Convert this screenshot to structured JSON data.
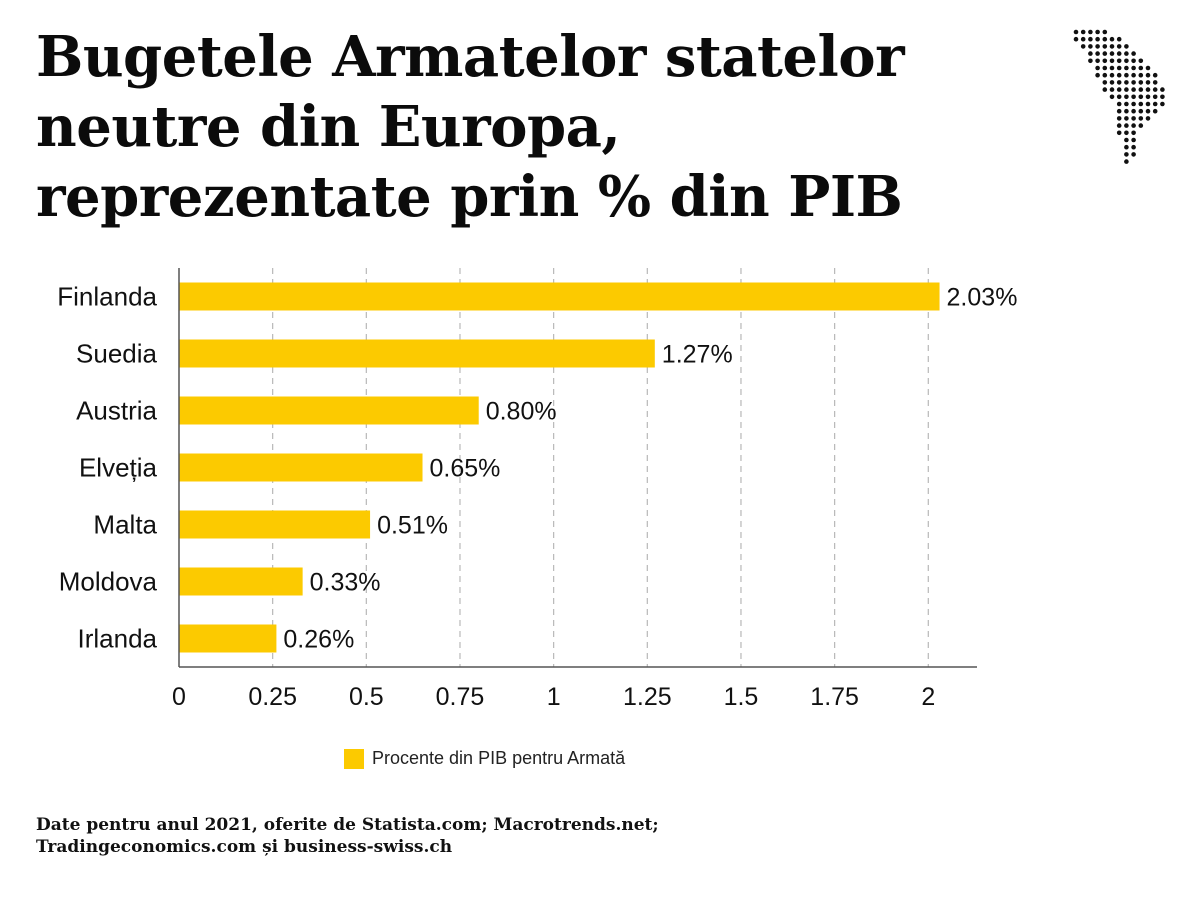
{
  "header": {
    "title_lines": [
      "Bugetele Armatelor statelor",
      "neutre din Europa,",
      "reprezentate prin % din PIB"
    ]
  },
  "logo": {
    "icon": "moldova-dotted-map-icon"
  },
  "chart_data": {
    "type": "bar",
    "orientation": "horizontal",
    "categories": [
      "Finlanda",
      "Suedia",
      "Austria",
      "Elveția",
      "Malta",
      "Moldova",
      "Irlanda"
    ],
    "series": [
      {
        "name": "Procente din PIB pentru Armată",
        "values": [
          2.03,
          1.27,
          0.8,
          0.65,
          0.51,
          0.33,
          0.26
        ],
        "labels": [
          "2.03%",
          "1.27%",
          "0.80%",
          "0.65%",
          "0.51%",
          "0.33%",
          "0.26%"
        ],
        "color": "#FCCA00"
      }
    ],
    "xticks": [
      0,
      0.25,
      0.5,
      0.75,
      1,
      1.25,
      1.5,
      1.75,
      2
    ],
    "xtick_labels": [
      "0",
      "0.25",
      "0.5",
      "0.75",
      "1",
      "1.25",
      "1.5",
      "1.75",
      "2"
    ],
    "xlim": [
      0,
      2.13
    ],
    "grid": "vertical-dashed",
    "legend_position": "bottom"
  },
  "footer": {
    "source_lines": [
      "Date pentru anul 2021, oferite de Statista.com; Macrotrends.net;",
      "Tradingeconomics.com și business-swiss.ch"
    ]
  }
}
